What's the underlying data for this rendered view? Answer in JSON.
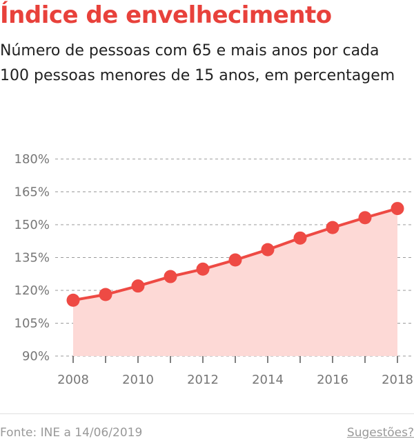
{
  "header": {
    "title": "Índice de envelhecimento",
    "subtitle": "Número de pessoas com 65 e mais anos por cada 100 pessoas menores de 15 anos, em percentagem"
  },
  "footer": {
    "source": "Fonte: INE a 14/06/2019",
    "suggestions_link": "Sugestões?"
  },
  "colors": {
    "accent": "#e8413b",
    "line": "#ee4a44",
    "area": "#fdd9d6"
  },
  "chart_data": {
    "type": "area",
    "title": "Índice de envelhecimento",
    "x": [
      2008,
      2009,
      2010,
      2011,
      2012,
      2013,
      2014,
      2015,
      2016,
      2017,
      2018
    ],
    "values": [
      115.5,
      118.1,
      122.0,
      126.3,
      129.7,
      133.9,
      138.6,
      143.9,
      148.7,
      153.2,
      157.4
    ],
    "ylim": [
      90,
      180
    ],
    "yticks": [
      90,
      105,
      120,
      135,
      150,
      165,
      180
    ],
    "ytick_labels": [
      "90%",
      "105%",
      "120%",
      "135%",
      "150%",
      "165%",
      "180%"
    ],
    "xticks": [
      2008,
      2010,
      2012,
      2014,
      2016,
      2018
    ],
    "xtick_labels": [
      "2008",
      "2010",
      "2012",
      "2014",
      "2016",
      "2018"
    ],
    "grid": true,
    "markers": true
  }
}
